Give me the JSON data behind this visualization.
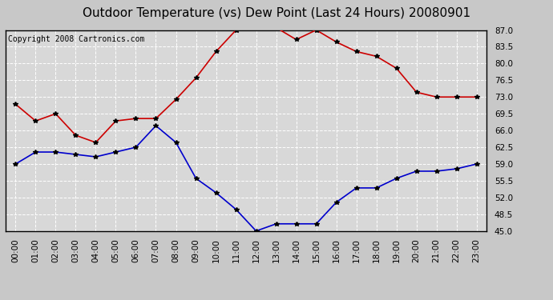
{
  "title": "Outdoor Temperature (vs) Dew Point (Last 24 Hours) 20080901",
  "copyright": "Copyright 2008 Cartronics.com",
  "hours": [
    "00:00",
    "01:00",
    "02:00",
    "03:00",
    "04:00",
    "05:00",
    "06:00",
    "07:00",
    "08:00",
    "09:00",
    "10:00",
    "11:00",
    "12:00",
    "13:00",
    "14:00",
    "15:00",
    "16:00",
    "17:00",
    "18:00",
    "19:00",
    "20:00",
    "21:00",
    "22:00",
    "23:00"
  ],
  "temp": [
    71.5,
    68.0,
    69.5,
    65.0,
    63.5,
    68.0,
    68.5,
    68.5,
    72.5,
    77.0,
    82.5,
    87.0,
    87.5,
    87.5,
    85.0,
    87.0,
    84.5,
    82.5,
    81.5,
    79.0,
    74.0,
    73.0,
    73.0,
    73.0
  ],
  "dew": [
    59.0,
    61.5,
    61.5,
    61.0,
    60.5,
    61.5,
    62.5,
    67.0,
    63.5,
    56.0,
    53.0,
    49.5,
    45.0,
    46.5,
    46.5,
    46.5,
    51.0,
    54.0,
    54.0,
    56.0,
    57.5,
    57.5,
    58.0,
    59.0
  ],
  "temp_color": "#cc0000",
  "dew_color": "#0000cc",
  "marker": "*",
  "marker_color": "#000000",
  "marker_size": 4,
  "ylim_min": 45.0,
  "ylim_max": 87.0,
  "yticks": [
    45.0,
    48.5,
    52.0,
    55.5,
    59.0,
    62.5,
    66.0,
    69.5,
    73.0,
    76.5,
    80.0,
    83.5,
    87.0
  ],
  "bg_color": "#c8c8c8",
  "plot_bg_color": "#d8d8d8",
  "grid_color": "#ffffff",
  "title_fontsize": 11,
  "tick_fontsize": 7.5,
  "copyright_fontsize": 7
}
